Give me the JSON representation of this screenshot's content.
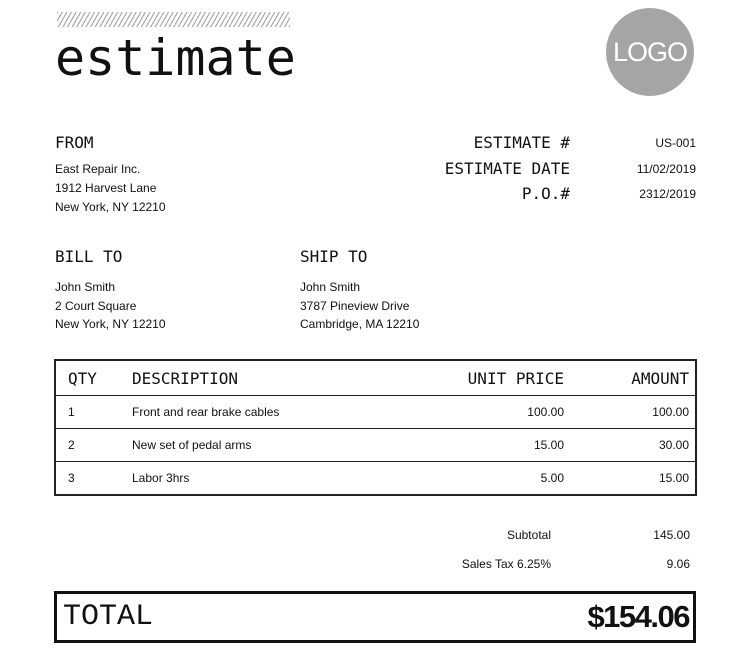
{
  "title": "estimate",
  "logo": "LOGO",
  "from": {
    "label": "FROM",
    "lines": [
      "East Repair Inc.",
      "1912 Harvest Lane",
      "New York, NY 12210"
    ]
  },
  "meta": [
    {
      "label": "ESTIMATE #",
      "value": "US-001"
    },
    {
      "label": "ESTIMATE DATE",
      "value": "11/02/2019"
    },
    {
      "label": "P.O.#",
      "value": "2312/2019"
    }
  ],
  "bill_to": {
    "label": "BILL TO",
    "lines": [
      "John Smith",
      "2 Court Square",
      "New York, NY 12210"
    ]
  },
  "ship_to": {
    "label": "SHIP TO",
    "lines": [
      "John Smith",
      "3787 Pineview Drive",
      "Cambridge, MA 12210"
    ]
  },
  "table": {
    "headers": [
      "QTY",
      "DESCRIPTION",
      "UNIT PRICE",
      "AMOUNT"
    ],
    "rows": [
      [
        "1",
        "Front and rear brake cables",
        "100.00",
        "100.00"
      ],
      [
        "2",
        "New set of pedal arms",
        "15.00",
        "30.00"
      ],
      [
        "3",
        "Labor 3hrs",
        "5.00",
        "15.00"
      ]
    ]
  },
  "summary": [
    {
      "label": "Subtotal",
      "value": "145.00"
    },
    {
      "label": "Sales Tax 6.25%",
      "value": "9.06"
    }
  ],
  "total": {
    "label": "TOTAL",
    "value": "$154.06"
  }
}
